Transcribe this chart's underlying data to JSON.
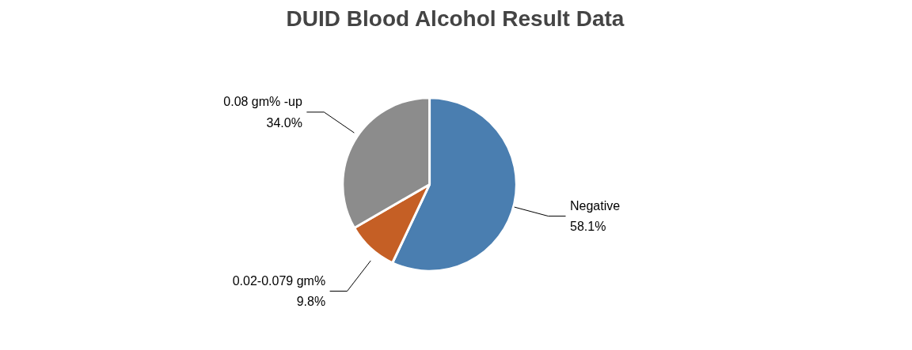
{
  "chart_data": {
    "type": "pie",
    "title": "DUID Blood Alcohol Result Data",
    "categories": [
      "Negative",
      "0.02-0.079 gm%",
      "0.08 gm% -up"
    ],
    "values": [
      58.1,
      9.8,
      34.0
    ],
    "colors": [
      "#4a7eb0",
      "#c55f25",
      "#8c8c8c"
    ],
    "data_labels": true,
    "value_labels": [
      "58.1%",
      "9.8%",
      "34.0%"
    ]
  }
}
